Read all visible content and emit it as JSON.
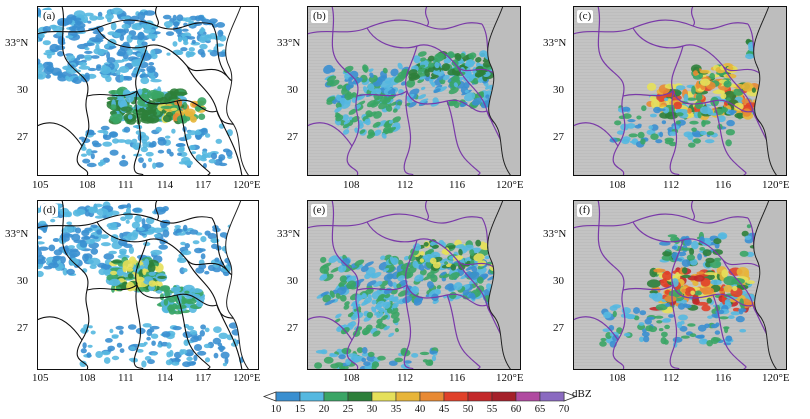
{
  "panels": [
    {
      "tag": "(a)",
      "lat_labels": [
        "33°N",
        "30",
        "27"
      ],
      "lon_labels": [
        "105",
        "108",
        "111",
        "114",
        "117",
        "120°E"
      ],
      "background": "white",
      "field": "obs_a"
    },
    {
      "tag": "(b)",
      "lat_labels": [
        "33°N",
        "30",
        "27"
      ],
      "lon_labels": [
        "108",
        "112",
        "116",
        "120°E"
      ],
      "background": "gray",
      "field": "b"
    },
    {
      "tag": "(c)",
      "lat_labels": [
        "33°N",
        "30",
        "27"
      ],
      "lon_labels": [
        "108",
        "112",
        "116",
        "120°E"
      ],
      "background": "gray",
      "field": "c"
    },
    {
      "tag": "(d)",
      "lat_labels": [
        "33°N",
        "30",
        "27"
      ],
      "lon_labels": [
        "105",
        "108",
        "111",
        "114",
        "117",
        "120°E"
      ],
      "background": "white",
      "field": "obs_d"
    },
    {
      "tag": "(e)",
      "lat_labels": [
        "33°N",
        "30",
        "27"
      ],
      "lon_labels": [
        "108",
        "112",
        "116",
        "120°E"
      ],
      "background": "gray",
      "field": "e"
    },
    {
      "tag": "(f)",
      "lat_labels": [
        "33°N",
        "30",
        "27"
      ],
      "lon_labels": [
        "108",
        "112",
        "116",
        "120°E"
      ],
      "background": "gray",
      "field": "f"
    }
  ],
  "colorbar": {
    "unit": "dBZ",
    "ticks": [
      "10",
      "15",
      "20",
      "25",
      "30",
      "35",
      "40",
      "45",
      "50",
      "55",
      "60",
      "65",
      "70"
    ],
    "colors": [
      "#3a8fd0",
      "#55b8e0",
      "#3aa565",
      "#2d7f3a",
      "#e5e05a",
      "#e7b53a",
      "#e88a34",
      "#e0412a",
      "#c3282a",
      "#a5202a",
      "#b04aa0",
      "#8a6ac0"
    ]
  },
  "colors": {
    "province_obs": "#111111",
    "province_model": "#7a3aa8",
    "sea_gray": "#bdbdbd"
  }
}
